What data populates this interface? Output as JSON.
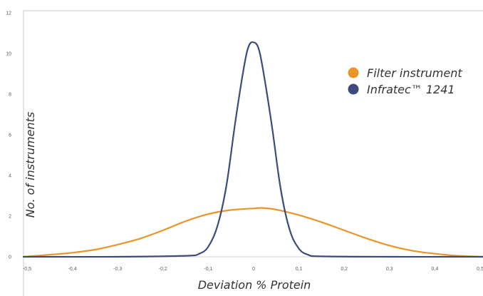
{
  "chart_data": {
    "type": "line",
    "xlabel": "Deviation % Protein",
    "ylabel": "No. of instruments",
    "xlim": [
      -0.5,
      0.5
    ],
    "ylim": [
      0,
      12
    ],
    "x_ticks": [
      "-0,5",
      "-0,4",
      "-0,3",
      "-0,2",
      "-0,1",
      "0",
      "0,1",
      "0,2",
      "0,3",
      "0,4",
      "0,5"
    ],
    "y_ticks": [
      "0",
      "2",
      "4",
      "6",
      "8",
      "10",
      "12"
    ],
    "grid": false,
    "legend_position": "top-right",
    "series": [
      {
        "name": "Filter instrument",
        "color": "#e8952a",
        "x": [
          -0.52,
          -0.45,
          -0.4,
          -0.35,
          -0.3,
          -0.25,
          -0.2,
          -0.15,
          -0.1,
          -0.05,
          0,
          0.02,
          0.05,
          0.1,
          0.15,
          0.2,
          0.25,
          0.3,
          0.35,
          0.4,
          0.45,
          0.52
        ],
        "y": [
          0,
          0.1,
          0.2,
          0.35,
          0.6,
          0.9,
          1.3,
          1.75,
          2.1,
          2.3,
          2.38,
          2.4,
          2.32,
          2.05,
          1.7,
          1.3,
          0.9,
          0.55,
          0.3,
          0.15,
          0.05,
          0
        ]
      },
      {
        "name": "Infratec™ 1241",
        "color": "#3d4b7a",
        "x": [
          -0.52,
          -0.3,
          -0.15,
          -0.12,
          -0.1,
          -0.08,
          -0.06,
          -0.04,
          -0.02,
          -0.01,
          0,
          0.01,
          0.02,
          0.04,
          0.06,
          0.08,
          0.1,
          0.12,
          0.15,
          0.3,
          0.52
        ],
        "y": [
          0,
          0,
          0.05,
          0.15,
          0.5,
          1.5,
          3.5,
          6.7,
          9.5,
          10.4,
          10.55,
          10.3,
          9.3,
          6.5,
          3.3,
          1.3,
          0.4,
          0.1,
          0.02,
          0,
          0
        ]
      }
    ]
  }
}
